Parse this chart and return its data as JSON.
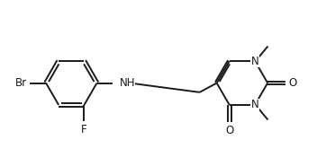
{
  "background_color": "#ffffff",
  "line_color": "#1a1a1a",
  "text_color": "#1a1a1a",
  "line_width": 1.4,
  "font_size": 8.5,
  "figsize": [
    3.62,
    1.85
  ],
  "dpi": 100,
  "xlim": [
    0,
    10.5
  ],
  "ylim": [
    0,
    5.2
  ]
}
